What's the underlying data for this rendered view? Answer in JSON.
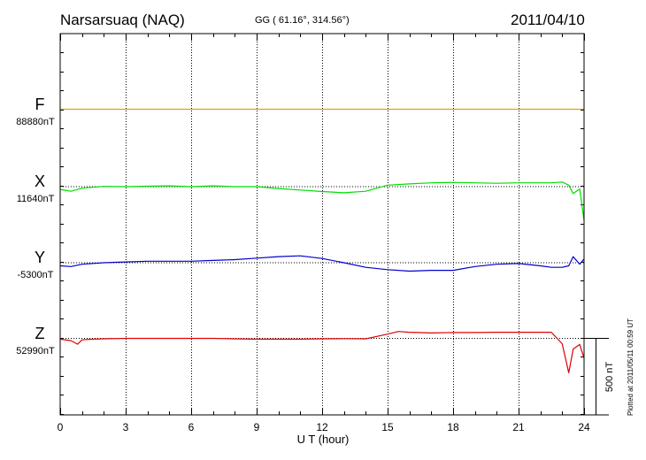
{
  "header": {
    "station": "Narsarsuaq (NAQ)",
    "coords": "GG ( 61.16°, 314.56°)",
    "date": "2011/04/10"
  },
  "scale_label": "500 nT",
  "plotted_note": "Plotted at 2011/05/11 00:59 UT",
  "colors": {
    "F": "#e8a000",
    "X": "#00dd00",
    "Y": "#0000cc",
    "Z": "#dd0000"
  },
  "chart_data": {
    "type": "line",
    "title": "Narsarsuaq (NAQ)",
    "xlabel": "U T (hour)",
    "xlim": [
      0,
      24
    ],
    "x_ticks": [
      0,
      3,
      6,
      9,
      12,
      15,
      18,
      21,
      24
    ],
    "x_tick_labels": [
      "0",
      "3",
      "6",
      "9",
      "12",
      "15",
      "18",
      "21",
      "24"
    ],
    "scale_bar_nT": 500,
    "series": [
      {
        "name": "F",
        "baseline": "88880nT",
        "baseline_nT": 88880,
        "x": [
          0,
          24
        ],
        "values": [
          0,
          0
        ]
      },
      {
        "name": "X",
        "baseline": "11640nT",
        "baseline_nT": 11640,
        "x": [
          0,
          0.5,
          1,
          2,
          3,
          4,
          5,
          6,
          7,
          8,
          9,
          10,
          11,
          12,
          13,
          14,
          15,
          16,
          17,
          18,
          19,
          20,
          21,
          22,
          22.5,
          23,
          23.3,
          23.5,
          23.8,
          24
        ],
        "values": [
          -18,
          -30,
          -10,
          2,
          0,
          3,
          5,
          0,
          5,
          0,
          0,
          -12,
          -22,
          -32,
          -40,
          -30,
          10,
          18,
          25,
          28,
          25,
          22,
          25,
          25,
          25,
          30,
          10,
          -45,
          -15,
          -220
        ]
      },
      {
        "name": "Y",
        "baseline": "-5300nT",
        "baseline_nT": -5300,
        "x": [
          0,
          0.5,
          1,
          2,
          3,
          4,
          5,
          6,
          7,
          8,
          9,
          10,
          11,
          12,
          13,
          14,
          15,
          16,
          17,
          18,
          19,
          20,
          21,
          22,
          22.5,
          23,
          23.3,
          23.5,
          23.8,
          24
        ],
        "values": [
          -20,
          -25,
          -10,
          0,
          5,
          10,
          10,
          10,
          15,
          20,
          30,
          40,
          45,
          28,
          0,
          -30,
          -45,
          -55,
          -50,
          -50,
          -25,
          -10,
          -5,
          -20,
          -30,
          -30,
          -20,
          40,
          -10,
          25
        ]
      },
      {
        "name": "Z",
        "baseline": "52990nT",
        "baseline_nT": 52990,
        "x": [
          0,
          0.5,
          0.8,
          1,
          1.5,
          2,
          3,
          4,
          5,
          6,
          7,
          8,
          9,
          10,
          11,
          12,
          13,
          14,
          15,
          15.5,
          16,
          17,
          18,
          19,
          20,
          21,
          22,
          22.5,
          23,
          23.3,
          23.5,
          23.8,
          24
        ],
        "values": [
          -5,
          -15,
          -38,
          -10,
          -5,
          -3,
          0,
          0,
          0,
          0,
          0,
          -3,
          -5,
          -5,
          -5,
          -3,
          -2,
          -3,
          28,
          45,
          40,
          35,
          38,
          38,
          40,
          40,
          40,
          40,
          -35,
          -225,
          -70,
          -40,
          -130
        ]
      }
    ]
  }
}
